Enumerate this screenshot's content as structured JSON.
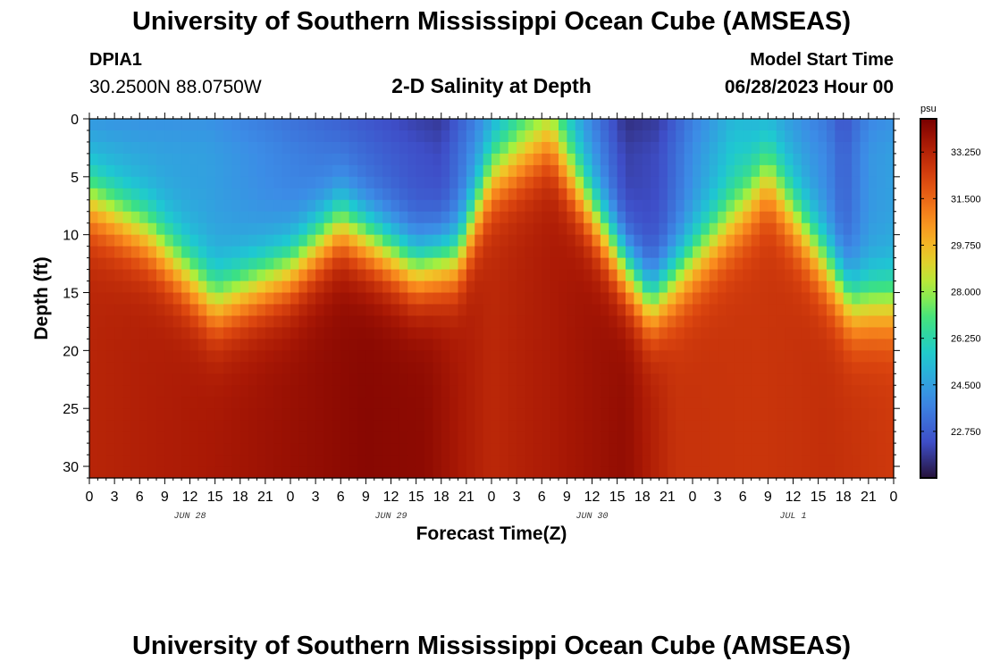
{
  "header": {
    "title": "University of Southern Mississippi Ocean Cube (AMSEAS)",
    "station": "DPIA1",
    "coords": "30.2500N  88.0750W",
    "subtitle": "2-D Salinity at Depth",
    "model_start_label": "Model Start Time",
    "model_start_value": "06/28/2023 Hour 00"
  },
  "footer": {
    "title": "University of Southern Mississippi Ocean Cube (AMSEAS)"
  },
  "chart_data": {
    "type": "heatmap",
    "title": "2-D Salinity at Depth",
    "xlabel": "Forecast Time(Z)",
    "ylabel": "Depth (ft)",
    "units": "psu",
    "x_range_hours": [
      0,
      96
    ],
    "y_range_ft": [
      0,
      31
    ],
    "x_ticks": [
      "0",
      "3",
      "6",
      "9",
      "12",
      "15",
      "18",
      "21",
      "0",
      "3",
      "6",
      "9",
      "12",
      "15",
      "18",
      "21",
      "0",
      "3",
      "6",
      "9",
      "12",
      "15",
      "18",
      "21",
      "0",
      "3",
      "6",
      "9",
      "12",
      "15",
      "18",
      "21",
      "0"
    ],
    "date_labels": [
      {
        "hour": 12,
        "label": "JUN 28"
      },
      {
        "hour": 36,
        "label": "JUN 29"
      },
      {
        "hour": 60,
        "label": "JUN 30"
      },
      {
        "hour": 84,
        "label": "JUL 1"
      }
    ],
    "y_ticks": [
      "0",
      "5",
      "10",
      "15",
      "20",
      "25",
      "30"
    ],
    "colorbar": {
      "range": [
        21.0,
        34.5
      ],
      "ticks": [
        "33.250",
        "31.500",
        "29.750",
        "28.000",
        "26.250",
        "24.500",
        "22.750"
      ],
      "tick_values": [
        33.25,
        31.5,
        29.75,
        28.0,
        26.25,
        24.5,
        22.75
      ]
    },
    "halocline_depth_ft": [
      {
        "hour": 0,
        "depth": 7
      },
      {
        "hour": 7,
        "depth": 10
      },
      {
        "hour": 15,
        "depth": 16
      },
      {
        "hour": 24,
        "depth": 13
      },
      {
        "hour": 30,
        "depth": 9
      },
      {
        "hour": 39,
        "depth": 13
      },
      {
        "hour": 44,
        "depth": 12
      },
      {
        "hour": 48,
        "depth": 5
      },
      {
        "hour": 55,
        "depth": 2
      },
      {
        "hour": 64,
        "depth": 13
      },
      {
        "hour": 67,
        "depth": 16
      },
      {
        "hour": 78,
        "depth": 8
      },
      {
        "hour": 81,
        "depth": 5
      },
      {
        "hour": 91,
        "depth": 16
      },
      {
        "hour": 96,
        "depth": 16
      }
    ],
    "surface_salinity_psu": [
      {
        "hour": 0,
        "value": 24.5
      },
      {
        "hour": 14,
        "value": 24.5
      },
      {
        "hour": 39,
        "value": 22.4
      },
      {
        "hour": 42,
        "value": 22.2
      },
      {
        "hour": 45,
        "value": 23.5
      },
      {
        "hour": 52,
        "value": 26.5
      },
      {
        "hour": 55,
        "value": 27.2
      },
      {
        "hour": 59,
        "value": 24.5
      },
      {
        "hour": 64,
        "value": 22.0
      },
      {
        "hour": 68,
        "value": 22.3
      },
      {
        "hour": 72,
        "value": 24.0
      },
      {
        "hour": 77,
        "value": 25.5
      },
      {
        "hour": 82,
        "value": 25.0
      },
      {
        "hour": 88,
        "value": 23.8
      },
      {
        "hour": 90,
        "value": 22.8
      },
      {
        "hour": 93,
        "value": 24.2
      },
      {
        "hour": 96,
        "value": 24.5
      }
    ],
    "bottom_salinity_psu": [
      {
        "hour": 0,
        "value": 33.2
      },
      {
        "hour": 15,
        "value": 33.6
      },
      {
        "hour": 33,
        "value": 34.2
      },
      {
        "hour": 40,
        "value": 34.1
      },
      {
        "hour": 48,
        "value": 33.1
      },
      {
        "hour": 60,
        "value": 33.8
      },
      {
        "hour": 64,
        "value": 34.0
      },
      {
        "hour": 70,
        "value": 32.8
      },
      {
        "hour": 80,
        "value": 32.7
      },
      {
        "hour": 88,
        "value": 32.9
      },
      {
        "hour": 96,
        "value": 32.6
      }
    ]
  }
}
